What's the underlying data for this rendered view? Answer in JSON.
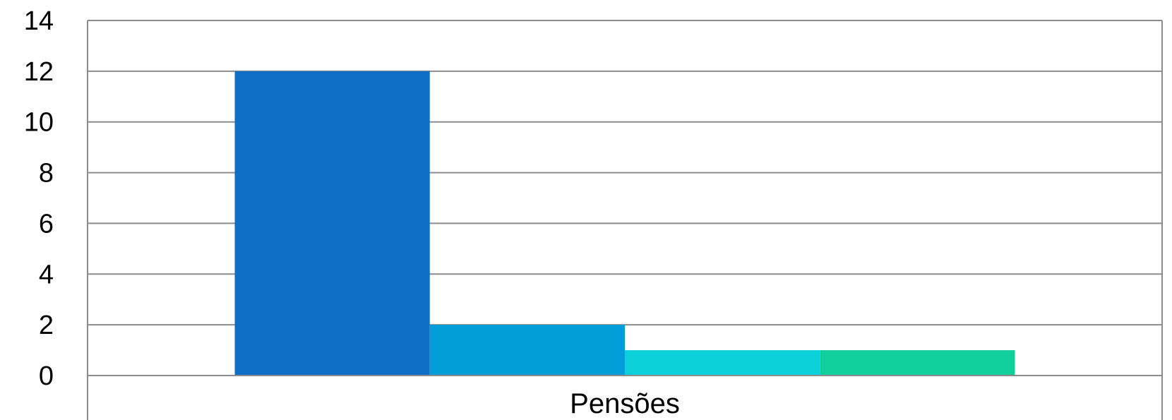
{
  "chart_data": {
    "type": "bar",
    "title": "",
    "xlabel": "",
    "ylabel": "",
    "categories": [
      "Pensões"
    ],
    "series": [
      {
        "values": [
          12
        ],
        "color": "#0F6FC6"
      },
      {
        "values": [
          2
        ],
        "color": "#009DD9"
      },
      {
        "values": [
          1
        ],
        "color": "#0BD0D9"
      },
      {
        "values": [
          1
        ],
        "color": "#10CF9B"
      }
    ],
    "ylim": [
      0,
      14
    ],
    "yticks": [
      0,
      2,
      4,
      6,
      8,
      10,
      12,
      14
    ],
    "grid": true,
    "legend": "none",
    "colors": {
      "gridline": "#8C8C8C",
      "text": "#000000",
      "background": "#FFFFFF"
    }
  }
}
